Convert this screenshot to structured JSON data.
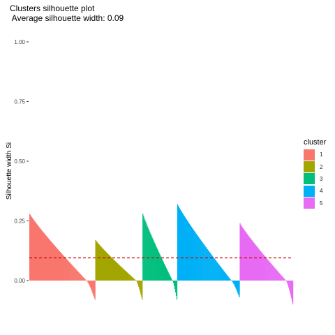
{
  "chart_data": {
    "type": "bar",
    "title": "Clusters silhouette plot",
    "subtitle": "Average silhouette width: 0.09",
    "ylabel": "Silhouette width Si",
    "xlabel": "",
    "ylim": [
      -0.13,
      1.0
    ],
    "yticks": [
      0.0,
      0.25,
      0.5,
      0.75,
      1.0
    ],
    "ytick_labels": [
      "0.00",
      "0.25",
      "0.50",
      "0.75",
      "1.00"
    ],
    "average_line": 0.095,
    "legend_title": "cluster",
    "legend_position": "right",
    "grid": false,
    "series": [
      {
        "name": "1",
        "color": "#F8766D",
        "count": 95,
        "max": 0.28,
        "min": -0.08
      },
      {
        "name": "2",
        "color": "#A3A500",
        "count": 68,
        "max": 0.17,
        "min": -0.08
      },
      {
        "name": "3",
        "color": "#00BF7D",
        "count": 50,
        "max": 0.28,
        "min": -0.08
      },
      {
        "name": "4",
        "color": "#00B0F6",
        "count": 90,
        "max": 0.32,
        "min": -0.07
      },
      {
        "name": "5",
        "color": "#E76BF3",
        "count": 77,
        "max": 0.24,
        "min": -0.1
      }
    ]
  }
}
